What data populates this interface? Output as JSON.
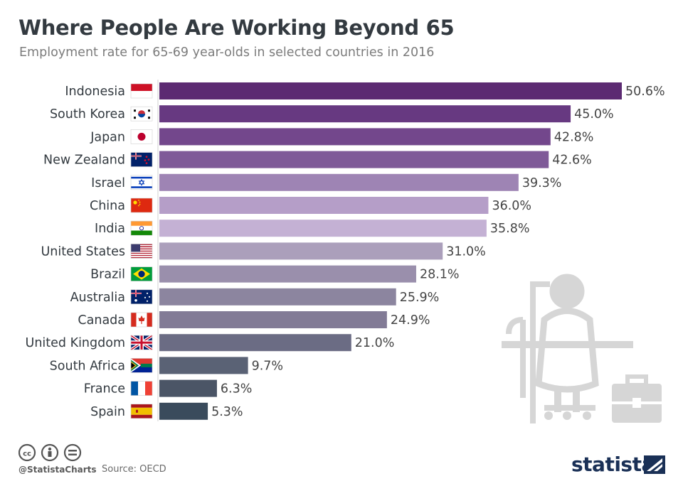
{
  "title": "Where People Are Working Beyond 65",
  "subtitle": "Employment rate for 65-69 year-olds in selected countries in 2016",
  "footer": {
    "handle": "@StatistaCharts",
    "source": "Source: OECD",
    "brand": "statista"
  },
  "colors": {
    "bars": [
      "#5c2a72",
      "#673981",
      "#73478c",
      "#7f5a98",
      "#9e84b4",
      "#b59ec8",
      "#c4b1d4",
      "#ab9fbb",
      "#9a8fac",
      "#8c859f",
      "#827b96",
      "#6b6c84",
      "#5a6275",
      "#4b5566",
      "#3a4b5c"
    ],
    "text": "#333a40",
    "illustration": "#d6d6d6",
    "brand": "#1a3056"
  },
  "chart_data": {
    "type": "bar",
    "orientation": "horizontal",
    "categories": [
      "Indonesia",
      "South Korea",
      "Japan",
      "New Zealand",
      "Israel",
      "China",
      "India",
      "United States",
      "Brazil",
      "Australia",
      "Canada",
      "United Kingdom",
      "South Africa",
      "France",
      "Spain"
    ],
    "values": [
      50.6,
      45.0,
      42.8,
      42.6,
      39.3,
      36.0,
      35.8,
      31.0,
      28.1,
      25.9,
      24.9,
      21.0,
      9.7,
      6.3,
      5.3
    ],
    "value_labels": [
      "50.6%",
      "45.0%",
      "42.8%",
      "42.6%",
      "39.3%",
      "36.0%",
      "35.8%",
      "31.0%",
      "28.1%",
      "25.9%",
      "24.9%",
      "21.0%",
      "9.7%",
      "6.3%",
      "5.3%"
    ],
    "flags": [
      "flag-indonesia-icon",
      "flag-south-korea-icon",
      "flag-japan-icon",
      "flag-new-zealand-icon",
      "flag-israel-icon",
      "flag-china-icon",
      "flag-india-icon",
      "flag-united-states-icon",
      "flag-brazil-icon",
      "flag-australia-icon",
      "flag-canada-icon",
      "flag-united-kingdom-icon",
      "flag-south-africa-icon",
      "flag-france-icon",
      "flag-spain-icon"
    ],
    "unit": "%",
    "xlim": [
      0,
      50.6
    ],
    "grid": false,
    "legend": "none"
  }
}
